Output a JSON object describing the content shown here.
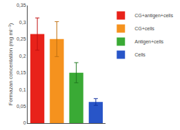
{
  "chart_data": {
    "type": "bar",
    "categories": [
      "CG+antigen+cells",
      "CG+cells",
      "Antigen+cells",
      "Cells"
    ],
    "values": [
      0.265,
      0.25,
      0.15,
      0.063
    ],
    "errors": [
      0.048,
      0.052,
      0.03,
      0.01
    ],
    "colors": [
      "#e8221a",
      "#f5921e",
      "#3aaa35",
      "#2855c8"
    ],
    "error_colors": [
      "#c01010",
      "#c07010",
      "#207a20",
      "#1030a0"
    ],
    "ylabel": "Formazan concentation (mg ml⁻¹)",
    "ylim": [
      0,
      0.35
    ],
    "yticks": [
      0,
      {
        "value": 0.05,
        "label": "0,05"
      },
      {
        "value": 0.1,
        "label": "0,1"
      },
      {
        "value": 0.15,
        "label": "0,15"
      },
      {
        "value": 0.2,
        "label": "0,2"
      },
      {
        "value": 0.25,
        "label": "0,25"
      },
      {
        "value": 0.3,
        "label": "0,3"
      },
      {
        "value": 0.35,
        "label": "0,35"
      }
    ],
    "grid": false,
    "legend": "upper right",
    "tick_labels": "y"
  }
}
